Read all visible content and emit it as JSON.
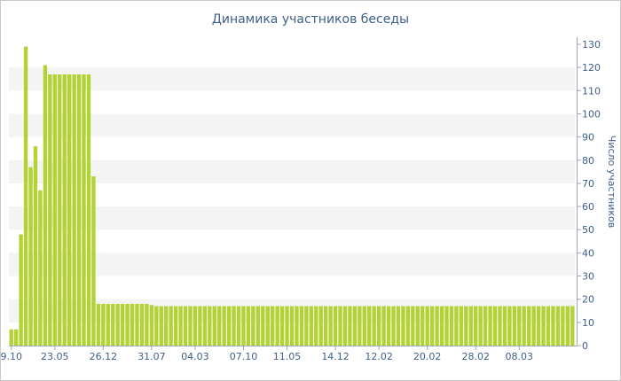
{
  "chart_data": {
    "type": "bar",
    "title": "Динамика участников беседы",
    "ylabel": "Число участников",
    "xlabel": "",
    "ylim": [
      0,
      130
    ],
    "y_ticks": [
      0,
      10,
      20,
      30,
      40,
      50,
      60,
      70,
      80,
      90,
      100,
      110,
      120,
      130
    ],
    "y_axis_side": "right",
    "grid": "alternating horizontal bands",
    "bar_color": "#b3d334",
    "band_color": "#f4f4f4",
    "text_color": "#3e5f8a",
    "x_tick_labels": [
      {
        "label": "9.10",
        "bar": 0
      },
      {
        "label": "23.05",
        "bar": 9
      },
      {
        "label": "26.12",
        "bar": 19
      },
      {
        "label": "31.07",
        "bar": 29
      },
      {
        "label": "04.03",
        "bar": 38
      },
      {
        "label": "07.10",
        "bar": 48
      },
      {
        "label": "11.05",
        "bar": 57
      },
      {
        "label": "14.12",
        "bar": 67
      },
      {
        "label": "12.02",
        "bar": 76
      },
      {
        "label": "20.02",
        "bar": 86
      },
      {
        "label": "28.02",
        "bar": 96
      },
      {
        "label": "08.03",
        "bar": 105
      }
    ],
    "values": [
      7,
      7,
      48,
      129,
      77,
      86,
      67,
      121,
      117,
      117,
      117,
      117,
      117,
      117,
      117,
      117,
      117,
      73,
      18,
      18,
      18,
      18,
      18,
      18,
      18,
      18,
      18,
      18,
      18,
      17.5,
      17,
      17,
      17,
      17,
      17,
      17,
      17,
      17,
      17,
      17,
      17,
      17,
      17,
      17,
      17,
      17,
      17,
      17,
      17,
      17,
      17,
      17,
      17,
      17,
      17,
      17,
      17,
      17,
      17,
      17,
      17,
      17,
      17,
      17,
      17,
      17,
      17,
      17,
      17,
      17,
      17,
      17,
      17,
      17,
      17,
      17,
      17,
      17,
      17,
      17,
      17,
      17,
      17,
      17,
      17,
      17,
      17,
      17,
      17,
      17,
      17,
      17,
      17,
      17,
      17,
      17,
      17,
      17,
      17,
      17,
      17,
      17,
      17,
      17,
      17,
      17,
      17,
      17,
      17,
      17,
      17,
      17,
      17,
      17,
      17,
      17,
      17
    ]
  }
}
